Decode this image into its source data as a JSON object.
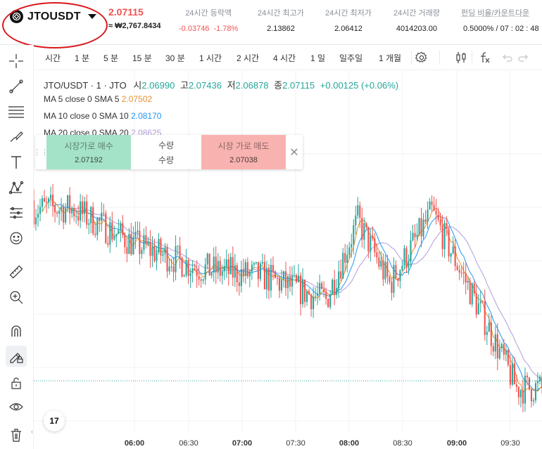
{
  "header": {
    "symbol": "JTOUSDT",
    "last_price": "2.07115",
    "krw_price": "≈ ₩2,767.8434",
    "stats": [
      {
        "label": "24시간 등락액",
        "value": "-0.03746",
        "value2": "-1.78%"
      },
      {
        "label": "24시간 최고가",
        "value": "2.13862"
      },
      {
        "label": "24시간 최저가",
        "value": "2.06412"
      },
      {
        "label": "24시간 거래량",
        "value": "4014203.00"
      },
      {
        "label": "펀딩 비율/카운트다운",
        "value": "0.5000% / 07 : 02 : 48"
      }
    ],
    "colors": {
      "up": "#26a69a",
      "down": "#ef5350",
      "highlight_circle": "#d8191c"
    }
  },
  "left_toolbar": {
    "tools": [
      "crosshair-icon",
      "trend-line-icon",
      "fib-lines-icon",
      "brush-icon",
      "text-icon",
      "pattern-icon",
      "forecast-icon",
      "emoji-icon",
      "ruler-icon",
      "zoom-in-icon",
      "magnet-icon",
      "lock-drawing-icon",
      "unlock-icon",
      "eye-icon",
      "trash-icon"
    ]
  },
  "chart_toolbar": {
    "timeframes": [
      "시간",
      "1 분",
      "5 분",
      "15 분",
      "30 분",
      "1 시간",
      "2 시간",
      "4 시간",
      "1 일",
      "일주일",
      "1 개월"
    ],
    "icons": [
      "settings-icon",
      "candle-type-icon",
      "indicators-icon",
      "undo-icon",
      "redo-icon"
    ]
  },
  "legend": {
    "title": "JTO/USDT · 1 · JTO",
    "open_label": "시",
    "open": "2.06990",
    "high_label": "고",
    "high": "2.07436",
    "low_label": "저",
    "low": "2.06878",
    "close_label": "종",
    "close": "2.07115",
    "change": "+0.00125 (+0.06%)",
    "ma": [
      {
        "label": "MA 5 close 0 SMA 5",
        "value": "2.07502",
        "color": "#e8912d"
      },
      {
        "label": "MA 10 close 0 SMA 10",
        "value": "2.08170",
        "color": "#2196f3"
      },
      {
        "label": "MA 20 close 0 SMA 20",
        "value": "2.08625",
        "color": "#b39ddb"
      }
    ]
  },
  "trade_widget": {
    "buy_label": "시장가로 매수",
    "buy_price": "2.07192",
    "qty_label": "수량",
    "qty_value": "수량",
    "sell_label": "시장 가로 매도",
    "sell_price": "2.07038",
    "close_glyph": "✕"
  },
  "x_axis": {
    "labels": [
      "06:00",
      "06:30",
      "07:00",
      "07:30",
      "08:00",
      "08:30",
      "09:00",
      "09:30"
    ],
    "bold": [
      true,
      false,
      true,
      false,
      true,
      false,
      true,
      false
    ]
  },
  "tv_logo": "17",
  "chart_data": {
    "type": "candlestick",
    "symbol": "JTO/USDT",
    "interval": "1",
    "x_range": [
      "05:42",
      "09:42"
    ],
    "y_range_approx": [
      2.06,
      2.14
    ],
    "close_path_approx": [
      {
        "t": "06:00",
        "price": 2.116
      },
      {
        "t": "06:30",
        "price": 2.107
      },
      {
        "t": "07:00",
        "price": 2.101
      },
      {
        "t": "07:30",
        "price": 2.099
      },
      {
        "t": "08:00",
        "price": 2.093
      },
      {
        "t": "08:15",
        "price": 2.113
      },
      {
        "t": "08:30",
        "price": 2.097
      },
      {
        "t": "08:50",
        "price": 2.115
      },
      {
        "t": "09:15",
        "price": 2.088
      },
      {
        "t": "09:30",
        "price": 2.071
      },
      {
        "t": "09:42",
        "price": 2.071
      }
    ],
    "series": [
      {
        "name": "MA 5",
        "color": "#e8912d"
      },
      {
        "name": "MA 10",
        "color": "#2196f3"
      },
      {
        "name": "MA 20",
        "color": "#b39ddb"
      }
    ],
    "current_price_line": "2.07115",
    "grid": true
  }
}
